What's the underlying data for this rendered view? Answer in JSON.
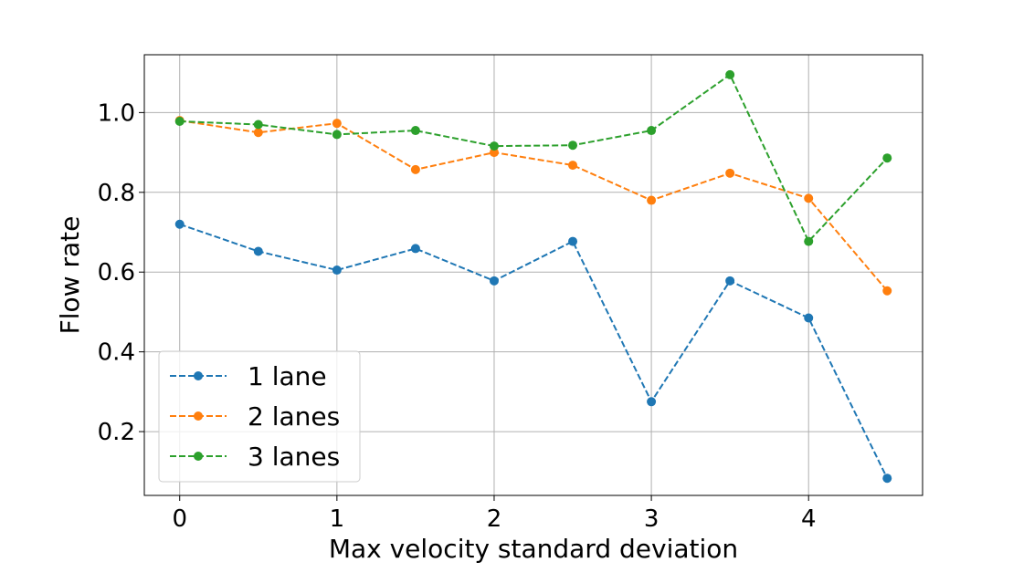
{
  "chart_data": {
    "type": "line",
    "title": "",
    "xlabel": "Max velocity standard deviation",
    "ylabel": "Flow rate",
    "xlim": [
      -0.225,
      4.725
    ],
    "ylim": [
      0.04,
      1.145
    ],
    "xticks": [
      0,
      1,
      2,
      3,
      4
    ],
    "xtick_labels": [
      "0",
      "1",
      "2",
      "3",
      "4"
    ],
    "yticks": [
      0.2,
      0.4,
      0.6,
      0.8,
      1.0
    ],
    "ytick_labels": [
      "0.2",
      "0.4",
      "0.6",
      "0.8",
      "1.0"
    ],
    "grid": true,
    "legend_position": "bottom-left",
    "x": [
      0,
      0.5,
      1,
      1.5,
      2,
      2.5,
      3,
      3.5,
      4,
      4.5
    ],
    "series": [
      {
        "name": "1 lane",
        "color": "#1f77b4",
        "line_style": "dashed",
        "marker": "circle",
        "values": [
          0.72,
          0.652,
          0.605,
          0.659,
          0.578,
          0.677,
          0.275,
          0.578,
          0.485,
          0.083
        ]
      },
      {
        "name": "2 lanes",
        "color": "#ff7f0e",
        "line_style": "dashed",
        "marker": "circle",
        "values": [
          0.98,
          0.95,
          0.973,
          0.857,
          0.9,
          0.868,
          0.78,
          0.848,
          0.785,
          0.553
        ]
      },
      {
        "name": "3 lanes",
        "color": "#2ca02c",
        "line_style": "dashed",
        "marker": "circle",
        "values": [
          0.978,
          0.97,
          0.945,
          0.955,
          0.916,
          0.918,
          0.955,
          1.095,
          0.677,
          0.886
        ]
      }
    ]
  }
}
